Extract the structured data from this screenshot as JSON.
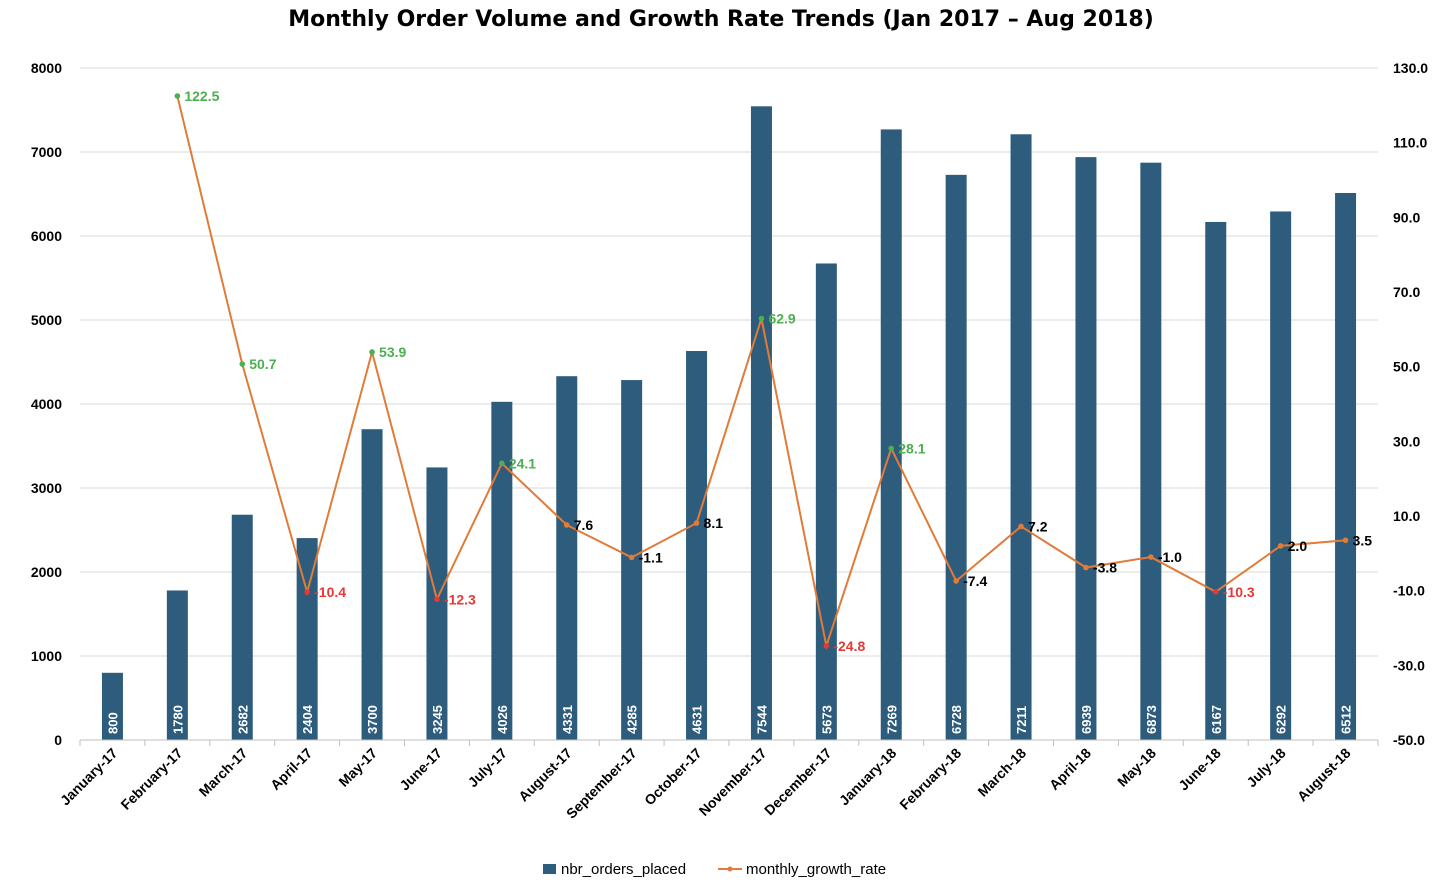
{
  "chart_data": {
    "type": "bar+line",
    "title": "Monthly Order Volume and Growth Rate Trends (Jan 2017 – Aug 2018)",
    "categories": [
      "January-17",
      "February-17",
      "March-17",
      "April-17",
      "May-17",
      "June-17",
      "July-17",
      "August-17",
      "September-17",
      "October-17",
      "November-17",
      "December-17",
      "January-18",
      "February-18",
      "March-18",
      "April-18",
      "May-18",
      "June-18",
      "July-18",
      "August-18"
    ],
    "series": [
      {
        "name": "nbr_orders_placed",
        "type": "bar",
        "axis": "left",
        "color": "#2e5c7d",
        "values": [
          800,
          1780,
          2682,
          2404,
          3700,
          3245,
          4026,
          4331,
          4285,
          4631,
          7544,
          5673,
          7269,
          6728,
          7211,
          6939,
          6873,
          6167,
          6292,
          6512
        ],
        "labels": [
          "800",
          "1780",
          "2682",
          "2404",
          "3700",
          "3245",
          "4026",
          "4331",
          "4285",
          "4631",
          "7544",
          "5673",
          "7269",
          "6728",
          "7211",
          "6939",
          "6873",
          "6167",
          "6292",
          "6512"
        ]
      },
      {
        "name": "monthly_growth_rate",
        "type": "line",
        "axis": "right",
        "color": "#e07b39",
        "values": [
          null,
          122.5,
          50.7,
          -10.4,
          53.9,
          -12.3,
          24.1,
          7.6,
          -1.1,
          8.1,
          62.9,
          -24.8,
          28.1,
          -7.4,
          7.2,
          -3.8,
          -1.0,
          -10.3,
          2.0,
          3.5
        ],
        "labels": [
          "",
          "122.5",
          "50.7",
          "-10.4",
          "53.9",
          "-12.3",
          "24.1",
          "7.6",
          "-1.1",
          "8.1",
          "62.9",
          "-24.8",
          "28.1",
          "-7.4",
          "7.2",
          "-3.8",
          "-1.0",
          "-10.3",
          "2.0",
          "3.5"
        ]
      }
    ],
    "y_left": {
      "min": 0,
      "max": 8000,
      "ticks": [
        "0",
        "1000",
        "2000",
        "3000",
        "4000",
        "5000",
        "6000",
        "7000",
        "8000"
      ]
    },
    "y_right": {
      "min": -50,
      "max": 130,
      "ticks": [
        "-50.0",
        "-30.0",
        "-10.0",
        "10.0",
        "30.0",
        "50.0",
        "70.0",
        "90.0",
        "110.0",
        "130.0"
      ]
    },
    "grid": true,
    "legend": "bottom",
    "label_colors": {
      "positive_high": "#4caf50",
      "negative_low": "#e53935",
      "normal": "#000000"
    }
  }
}
